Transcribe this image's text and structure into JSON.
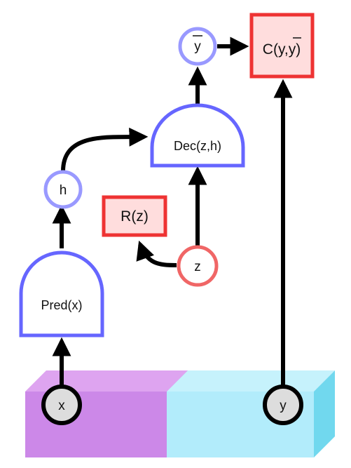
{
  "nodes": {
    "x_label": "x",
    "y_label": "y",
    "pred_label": "Pred(x)",
    "h_label": "h",
    "dec_label": "Dec(z,h)",
    "z_label": "z",
    "reg_label": "R(z)",
    "ybar_label": "y",
    "cost_label": "C(y,y)"
  },
  "colors": {
    "purple_block": "#cc88e8",
    "purple_dark": "#c24ec6",
    "cyan_block": "#b2ecfb",
    "cyan_dark": "#71d8ee",
    "blue_stroke": "#6666ff",
    "light_blue_stroke": "#9999ff",
    "red_stroke": "#ee3333",
    "red_light_stroke": "#f06666",
    "red_fill": "#ffdddd",
    "grey_fill": "#dddddd"
  }
}
